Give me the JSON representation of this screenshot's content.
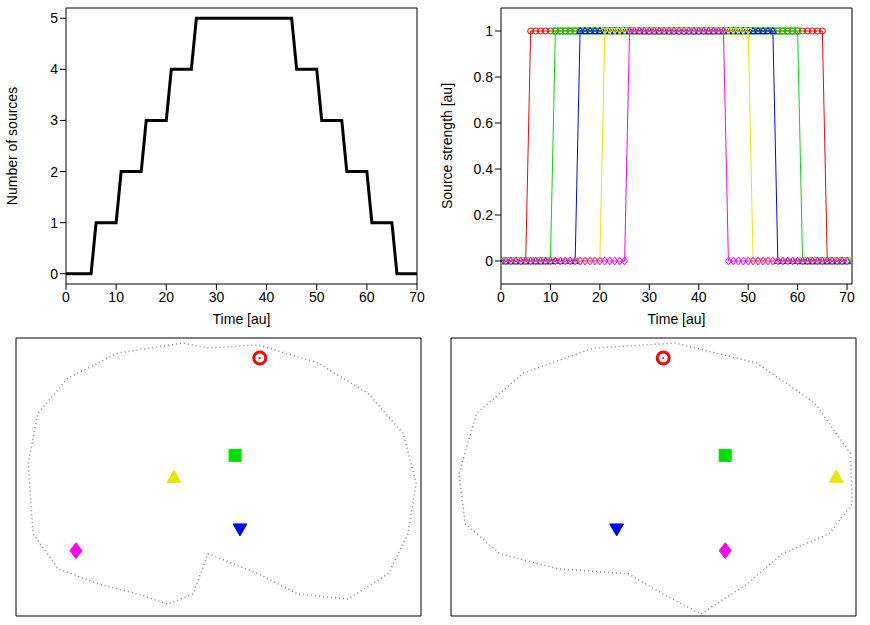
{
  "chart_data": [
    {
      "type": "line",
      "xlabel": "Time [au]",
      "ylabel": "Number of sources",
      "x": [
        0,
        5,
        6,
        10,
        11,
        15,
        16,
        20,
        21,
        25,
        26,
        45,
        46,
        50,
        51,
        55,
        56,
        60,
        61,
        65,
        66,
        70
      ],
      "values": [
        0,
        0,
        1,
        1,
        2,
        2,
        3,
        3,
        4,
        4,
        5,
        5,
        4,
        4,
        3,
        3,
        2,
        2,
        1,
        1,
        0,
        0
      ],
      "color": "#000000",
      "xlim": [
        0,
        70
      ],
      "xticks": [
        0,
        10,
        20,
        30,
        40,
        50,
        60,
        70
      ],
      "ylim": [
        -0.2,
        5.2
      ],
      "yticks": [
        0,
        1,
        2,
        3,
        4,
        5
      ],
      "grid": false
    },
    {
      "type": "line",
      "xlabel": "Time [au]",
      "ylabel": "Source strength [au]",
      "x": [
        0,
        1,
        2,
        3,
        4,
        5,
        6,
        7,
        8,
        9,
        10,
        11,
        12,
        13,
        14,
        15,
        16,
        17,
        18,
        19,
        20,
        21,
        22,
        23,
        24,
        25,
        26,
        27,
        28,
        29,
        30,
        31,
        32,
        33,
        34,
        35,
        36,
        37,
        38,
        39,
        40,
        41,
        42,
        43,
        44,
        45,
        46,
        47,
        48,
        49,
        50,
        51,
        52,
        53,
        54,
        55,
        56,
        57,
        58,
        59,
        60,
        61,
        62,
        63,
        64,
        65,
        66,
        67,
        68,
        69,
        70
      ],
      "series": [
        {
          "color": "#ff0000",
          "marker": "circle",
          "values": [
            0,
            0,
            0,
            0,
            0,
            0,
            1,
            1,
            1,
            1,
            1,
            1,
            1,
            1,
            1,
            1,
            1,
            1,
            1,
            1,
            1,
            1,
            1,
            1,
            1,
            1,
            1,
            1,
            1,
            1,
            1,
            1,
            1,
            1,
            1,
            1,
            1,
            1,
            1,
            1,
            1,
            1,
            1,
            1,
            1,
            1,
            1,
            1,
            1,
            1,
            1,
            1,
            1,
            1,
            1,
            1,
            1,
            1,
            1,
            1,
            1,
            1,
            1,
            1,
            1,
            1,
            0,
            0,
            0,
            0,
            0
          ]
        },
        {
          "color": "#00dd00",
          "marker": "square",
          "values": [
            0,
            0,
            0,
            0,
            0,
            0,
            0,
            0,
            0,
            0,
            0,
            1,
            1,
            1,
            1,
            1,
            1,
            1,
            1,
            1,
            1,
            1,
            1,
            1,
            1,
            1,
            1,
            1,
            1,
            1,
            1,
            1,
            1,
            1,
            1,
            1,
            1,
            1,
            1,
            1,
            1,
            1,
            1,
            1,
            1,
            1,
            1,
            1,
            1,
            1,
            1,
            1,
            1,
            1,
            1,
            1,
            1,
            1,
            1,
            1,
            1,
            0,
            0,
            0,
            0,
            0,
            0,
            0,
            0,
            0,
            0
          ]
        },
        {
          "color": "#0000ff",
          "marker": "triangle",
          "values": [
            0,
            0,
            0,
            0,
            0,
            0,
            0,
            0,
            0,
            0,
            0,
            0,
            0,
            0,
            0,
            0,
            1,
            1,
            1,
            1,
            1,
            1,
            1,
            1,
            1,
            1,
            1,
            1,
            1,
            1,
            1,
            1,
            1,
            1,
            1,
            1,
            1,
            1,
            1,
            1,
            1,
            1,
            1,
            1,
            1,
            1,
            1,
            1,
            1,
            1,
            1,
            1,
            1,
            1,
            1,
            1,
            0,
            0,
            0,
            0,
            0,
            0,
            0,
            0,
            0,
            0,
            0,
            0,
            0,
            0,
            0
          ]
        },
        {
          "color": "#e6e600",
          "marker": "triangle-down",
          "values": [
            0,
            0,
            0,
            0,
            0,
            0,
            0,
            0,
            0,
            0,
            0,
            0,
            0,
            0,
            0,
            0,
            0,
            0,
            0,
            0,
            0,
            1,
            1,
            1,
            1,
            1,
            1,
            1,
            1,
            1,
            1,
            1,
            1,
            1,
            1,
            1,
            1,
            1,
            1,
            1,
            1,
            1,
            1,
            1,
            1,
            1,
            1,
            1,
            1,
            1,
            1,
            0,
            0,
            0,
            0,
            0,
            0,
            0,
            0,
            0,
            0,
            0,
            0,
            0,
            0,
            0,
            0,
            0,
            0,
            0,
            0
          ]
        },
        {
          "color": "#ff00ff",
          "marker": "diamond",
          "values": [
            0,
            0,
            0,
            0,
            0,
            0,
            0,
            0,
            0,
            0,
            0,
            0,
            0,
            0,
            0,
            0,
            0,
            0,
            0,
            0,
            0,
            0,
            0,
            0,
            0,
            0,
            1,
            1,
            1,
            1,
            1,
            1,
            1,
            1,
            1,
            1,
            1,
            1,
            1,
            1,
            1,
            1,
            1,
            1,
            1,
            1,
            0,
            0,
            0,
            0,
            0,
            0,
            0,
            0,
            0,
            0,
            0,
            0,
            0,
            0,
            0,
            0,
            0,
            0,
            0,
            0,
            0,
            0,
            0,
            0,
            0
          ]
        }
      ],
      "xlim": [
        0,
        71
      ],
      "xticks": [
        0,
        10,
        20,
        30,
        40,
        50,
        60,
        70
      ],
      "ylim": [
        -0.1,
        1.1
      ],
      "yticks": [
        0,
        0.2,
        0.4,
        0.6,
        0.8,
        1
      ],
      "grid": false
    },
    {
      "type": "scatter",
      "tick_labels": false,
      "grid": false,
      "xlim": [
        0,
        100
      ],
      "ylim": [
        0,
        100
      ],
      "brain_outline": {
        "color": "#888888",
        "line_style": "dotted",
        "x": [
          3.0,
          5.4,
          12.8,
          25.2,
          41.2,
          47.4,
          59.8,
          74.6,
          86.9,
          95.6,
          98.8,
          96.8,
          91.9,
          82.0,
          69.6,
          59.8,
          47.4,
          43.7,
          37.5,
          30.1,
          20.2,
          10.4,
          4.2,
          3.0
        ],
        "y": [
          54.9,
          72.9,
          85.6,
          94.6,
          98.2,
          96.4,
          97.5,
          91.0,
          80.1,
          65.7,
          47.7,
          29.6,
          15.2,
          6.1,
          7.9,
          15.2,
          22.4,
          7.9,
          4.3,
          7.9,
          11.6,
          17.0,
          29.6,
          54.9
        ]
      },
      "series": [
        {
          "color": "#ff0000",
          "marker": "circle",
          "x": [
            60.2
          ],
          "y": [
            92.8
          ]
        },
        {
          "color": "#00dd00",
          "marker": "square",
          "x": [
            54.1
          ],
          "y": [
            57.8
          ]
        },
        {
          "color": "#0000ff",
          "marker": "triangle-down",
          "x": [
            55.3
          ],
          "y": [
            31.4
          ]
        },
        {
          "color": "#e6e600",
          "marker": "triangle",
          "x": [
            39.0
          ],
          "y": [
            49.8
          ]
        },
        {
          "color": "#ff00ff",
          "marker": "diamond",
          "x": [
            14.8
          ],
          "y": [
            23.5
          ]
        }
      ]
    },
    {
      "type": "scatter",
      "tick_labels": false,
      "grid": false,
      "xlim": [
        0,
        100
      ],
      "ylim": [
        0,
        100
      ],
      "brain_outline": {
        "color": "#888888",
        "line_style": "dotted",
        "x": [
          2.0,
          6.3,
          17.9,
          35.2,
          55.3,
          75.5,
          89.9,
          98.6,
          99.1,
          93.4,
          81.8,
          73.2,
          61.7,
          52.4,
          43.8,
          26.5,
          12.1,
          3.5,
          2.0
        ],
        "y": [
          51.3,
          72.9,
          87.4,
          96.4,
          98.2,
          91.0,
          76.5,
          58.5,
          40.4,
          29.6,
          22.4,
          11.6,
          0.7,
          7.9,
          15.2,
          17.0,
          22.4,
          33.2,
          51.3
        ]
      },
      "series": [
        {
          "color": "#ff0000",
          "marker": "circle",
          "x": [
            52.4
          ],
          "y": [
            92.8
          ]
        },
        {
          "color": "#00dd00",
          "marker": "square",
          "x": [
            67.7
          ],
          "y": [
            57.8
          ]
        },
        {
          "color": "#0000ff",
          "marker": "triangle-down",
          "x": [
            40.9
          ],
          "y": [
            31.4
          ]
        },
        {
          "color": "#e6e600",
          "marker": "triangle",
          "x": [
            95.1
          ],
          "y": [
            49.8
          ]
        },
        {
          "color": "#ff00ff",
          "marker": "diamond",
          "x": [
            67.7
          ],
          "y": [
            23.5
          ]
        }
      ]
    }
  ]
}
